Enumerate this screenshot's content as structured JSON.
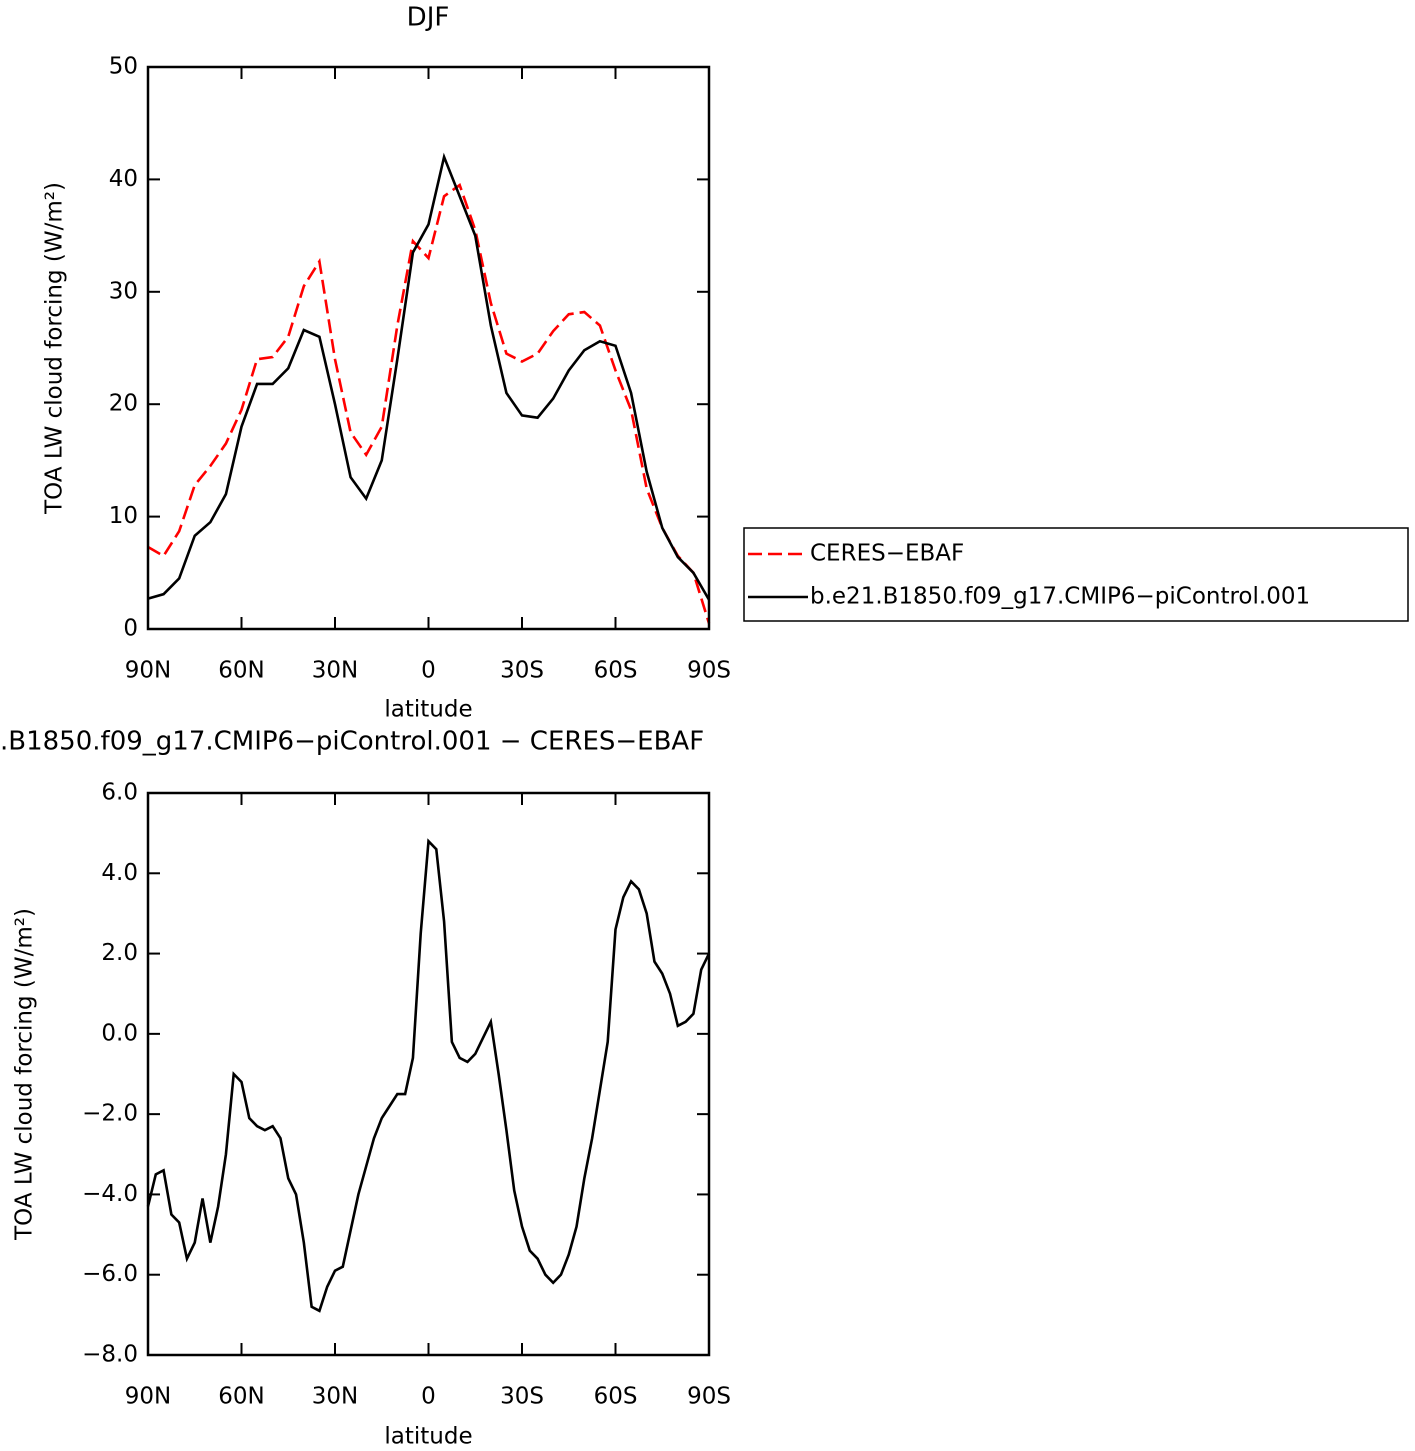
{
  "chart_data": [
    {
      "type": "line",
      "title": "DJF",
      "x_label": "latitude",
      "y_label": "TOA LW cloud forcing (W/m²)",
      "x": [
        90,
        85,
        80,
        75,
        70,
        65,
        60,
        55,
        50,
        45,
        40,
        35,
        30,
        25,
        20,
        15,
        10,
        5,
        0,
        -5,
        -10,
        -15,
        -20,
        -25,
        -30,
        -35,
        -40,
        -45,
        -50,
        -55,
        -60,
        -65,
        -70,
        -75,
        -80,
        -85,
        -90
      ],
      "series": [
        {
          "name": "CERES−EBAF",
          "color": "#ff0000",
          "dash": "dashed",
          "values": [
            7.3,
            6.5,
            8.7,
            12.8,
            14.5,
            16.5,
            19.5,
            24,
            24.2,
            26,
            30.5,
            32.7,
            24,
            17.5,
            15.5,
            18,
            27,
            34.5,
            33,
            38.5,
            39.5,
            35.5,
            29,
            24.5,
            23.8,
            24.5,
            26.5,
            28,
            28.2,
            27,
            23,
            19.5,
            12.5,
            9,
            6.5,
            5,
            0.5
          ]
        },
        {
          "name": "b.e21.B1850.f09_g17.CMIP6−piControl.001",
          "color": "#000000",
          "dash": "solid",
          "values": [
            2.7,
            3.1,
            4.5,
            8.3,
            9.5,
            12,
            18,
            21.8,
            21.8,
            23.2,
            26.6,
            26,
            20,
            13.5,
            11.6,
            15,
            24,
            33.5,
            36,
            42,
            38.5,
            35,
            27,
            21,
            19,
            18.8,
            20.5,
            23,
            24.8,
            25.6,
            25.2,
            21,
            14,
            9,
            6.4,
            5,
            2.6
          ]
        }
      ],
      "xlim": [
        90,
        -90
      ],
      "xticks": [
        {
          "value": 90,
          "label": "90N"
        },
        {
          "value": 60,
          "label": "60N"
        },
        {
          "value": 30,
          "label": "30N"
        },
        0,
        {
          "value": -30,
          "label": "30S"
        },
        {
          "value": -60,
          "label": "60S"
        },
        {
          "value": -90,
          "label": "90S"
        }
      ],
      "ylim": [
        0,
        50
      ],
      "yticks": [
        0,
        10,
        20,
        30,
        40,
        50
      ],
      "legend": "right"
    },
    {
      "type": "line",
      "title": ".B1850.f09_g17.CMIP6−piControl.001 − CERES−EBAF",
      "x_label": "latitude",
      "y_label": "TOA LW cloud forcing (W/m²)",
      "x": [
        90,
        87.5,
        85,
        82.5,
        80,
        77.5,
        75,
        72.5,
        70,
        67.5,
        65,
        62.5,
        60,
        57.5,
        55,
        52.5,
        50,
        47.5,
        45,
        42.5,
        40,
        37.5,
        35,
        32.5,
        30,
        27.5,
        25,
        22.5,
        20,
        17.5,
        15,
        12.5,
        10,
        7.5,
        5,
        2.5,
        0,
        -2.5,
        -5,
        -7.5,
        -10,
        -12.5,
        -15,
        -17.5,
        -20,
        -22.5,
        -25,
        -27.5,
        -30,
        -32.5,
        -35,
        -37.5,
        -40,
        -42.5,
        -45,
        -47.5,
        -50,
        -52.5,
        -55,
        -57.5,
        -60,
        -62.5,
        -65,
        -67.5,
        -70,
        -72.5,
        -75,
        -77.5,
        -80,
        -82.5,
        -85,
        -87.5,
        -90
      ],
      "series": [
        {
          "color": "#000000",
          "dash": "solid",
          "values": [
            -4.3,
            -3.5,
            -3.4,
            -4.5,
            -4.7,
            -5.6,
            -5.2,
            -4.1,
            -5.2,
            -4.3,
            -3.0,
            -1.0,
            -1.2,
            -2.1,
            -2.3,
            -2.4,
            -2.3,
            -2.6,
            -3.6,
            -4.0,
            -5.2,
            -6.8,
            -6.9,
            -6.3,
            -5.9,
            -5.8,
            -4.9,
            -4.0,
            -3.3,
            -2.6,
            -2.1,
            -1.8,
            -1.5,
            -1.5,
            -0.6,
            2.5,
            4.8,
            4.6,
            2.8,
            -0.2,
            -0.6,
            -0.7,
            -0.5,
            -0.1,
            0.3,
            -1.0,
            -2.4,
            -3.9,
            -4.8,
            -5.4,
            -5.6,
            -6.0,
            -6.2,
            -6.0,
            -5.5,
            -4.8,
            -3.6,
            -2.6,
            -1.4,
            -0.2,
            2.6,
            3.4,
            3.8,
            3.6,
            3.0,
            1.8,
            1.5,
            1.0,
            0.2,
            0.3,
            0.5,
            1.6,
            2.0
          ]
        }
      ],
      "xlim": [
        90,
        -90
      ],
      "xticks": [
        {
          "value": 90,
          "label": "90N"
        },
        {
          "value": 60,
          "label": "60N"
        },
        {
          "value": 30,
          "label": "30N"
        },
        0,
        {
          "value": -30,
          "label": "30S"
        },
        {
          "value": -60,
          "label": "60S"
        },
        {
          "value": -90,
          "label": "90S"
        }
      ],
      "ylim": [
        -8,
        6
      ],
      "yticks": [
        {
          "value": -8,
          "label": "−8.0"
        },
        {
          "value": -6,
          "label": "−6.0"
        },
        {
          "value": -4,
          "label": "−4.0"
        },
        {
          "value": -2,
          "label": "−2.0"
        },
        {
          "value": 0,
          "label": "0.0"
        },
        {
          "value": 2,
          "label": "2.0"
        },
        {
          "value": 4,
          "label": "4.0"
        },
        {
          "value": 6,
          "label": "6.0"
        }
      ]
    }
  ]
}
